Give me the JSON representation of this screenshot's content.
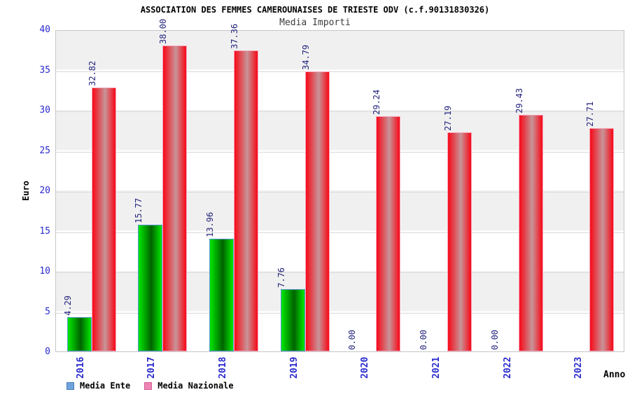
{
  "chart_data": {
    "type": "bar",
    "title": "ASSOCIATION DES FEMMES CAMEROUNAISES DE TRIESTE ODV (c.f.90131830326)",
    "subtitle": "Media Importi",
    "xlabel": "Anno",
    "ylabel": "Euro",
    "ylim": [
      0,
      40
    ],
    "ytick_step": 5,
    "grid": "horizontal",
    "plot_band_colors": [
      "#ffffff",
      "#f0f0f0"
    ],
    "legend_position": "bottom-left",
    "categories": [
      "2016",
      "2017",
      "2018",
      "2019",
      "2020",
      "2021",
      "2022",
      "2023"
    ],
    "series": [
      {
        "name": "Media Ente",
        "values": [
          4.29,
          15.77,
          13.96,
          7.76,
          0,
          0,
          0,
          0
        ],
        "value_labels": [
          "4.29",
          "15.77",
          "13.96",
          "7.76",
          "0.00",
          "0.00",
          "0.00",
          ""
        ],
        "legend_swatch": {
          "fill": "#6fa3dc",
          "border": "#4a7ebb"
        },
        "bar": {
          "edge_color": "#00e100",
          "mid_color": "#006300",
          "border": "#5b9bd5"
        }
      },
      {
        "name": "Media Nazionale",
        "values": [
          32.82,
          38.0,
          37.36,
          34.79,
          29.24,
          27.19,
          29.43,
          27.71
        ],
        "value_labels": [
          "32.82",
          "38.00",
          "37.36",
          "34.79",
          "29.24",
          "27.19",
          "29.43",
          "27.71"
        ],
        "legend_swatch": {
          "fill": "#f083b5",
          "border": "#d15e93"
        },
        "bar": {
          "edge_color": "#f5101e",
          "mid_color": "#c79598",
          "border": "#f7a6bc"
        }
      }
    ],
    "colors": {
      "tick_label": "#2a2ace",
      "value_label": "#24247e",
      "title": "#000000",
      "subtitle": "#3d3d3d",
      "gridline": "#d9d9d9"
    }
  }
}
